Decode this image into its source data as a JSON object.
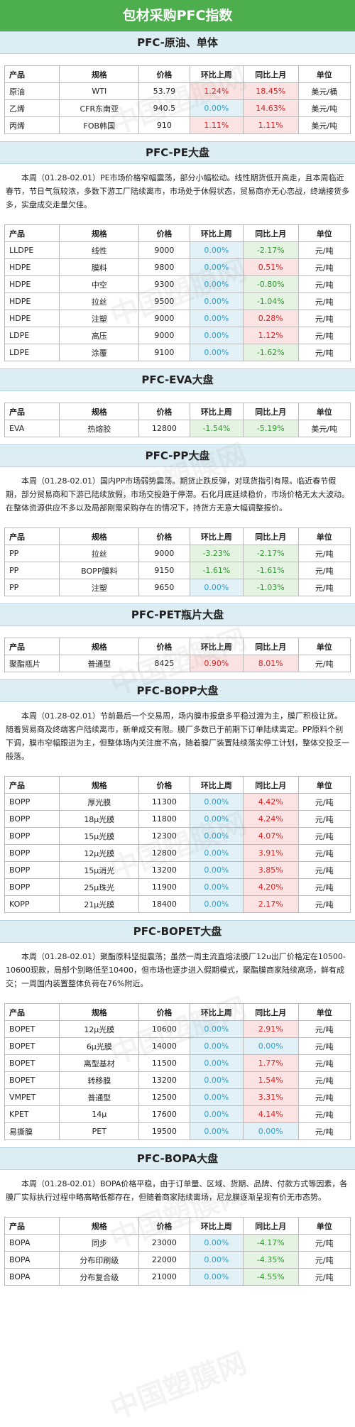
{
  "title": "包材采购PFC指数",
  "watermark": "中国塑膜网",
  "header": {
    "c0": "产品",
    "c1": "规格",
    "c2": "价格",
    "c3": "环比上周",
    "c4": "同比上月",
    "c5": "单位"
  },
  "sections": [
    {
      "title": "PFC-原油、单体",
      "note": "",
      "rows": [
        {
          "p": "原油",
          "s": "WTI",
          "v": "53.79",
          "w": "1.24%",
          "wt": "up",
          "m": "18.45%",
          "mt": "up",
          "u": "美元/桶"
        },
        {
          "p": "乙烯",
          "s": "CFR东南亚",
          "v": "940.5",
          "w": "0.00%",
          "wt": "fl",
          "m": "14.63%",
          "mt": "up",
          "u": "美元/吨"
        },
        {
          "p": "丙烯",
          "s": "FOB韩国",
          "v": "910",
          "w": "1.11%",
          "wt": "up",
          "m": "1.11%",
          "mt": "up",
          "u": "美元/吨"
        }
      ]
    },
    {
      "title": "PFC-PE大盘",
      "note": "本周（01.28-02.01）PE市场价格窄幅震荡，部分小幅松动。线性期货低开高走，且本周临近春节，节日气氛较浓，多数下游工厂陆续离市，市场处于休假状态，贸易商亦无心恋战，终端接货多多，实盘成交走量欠佳。",
      "rows": [
        {
          "p": "LLDPE",
          "s": "线性",
          "v": "9000",
          "w": "0.00%",
          "wt": "fl",
          "m": "-2.17%",
          "mt": "dn",
          "u": "元/吨"
        },
        {
          "p": "HDPE",
          "s": "膜料",
          "v": "9800",
          "w": "0.00%",
          "wt": "fl",
          "m": "0.51%",
          "mt": "up",
          "u": "元/吨"
        },
        {
          "p": "HDPE",
          "s": "中空",
          "v": "9300",
          "w": "0.00%",
          "wt": "fl",
          "m": "-0.80%",
          "mt": "dn",
          "u": "元/吨"
        },
        {
          "p": "HDPE",
          "s": "拉丝",
          "v": "9500",
          "w": "0.00%",
          "wt": "fl",
          "m": "-1.04%",
          "mt": "dn",
          "u": "元/吨"
        },
        {
          "p": "HDPE",
          "s": "注塑",
          "v": "9000",
          "w": "0.00%",
          "wt": "fl",
          "m": "0.28%",
          "mt": "up",
          "u": "元/吨"
        },
        {
          "p": "LDPE",
          "s": "高压",
          "v": "9000",
          "w": "0.00%",
          "wt": "fl",
          "m": "1.12%",
          "mt": "up",
          "u": "元/吨"
        },
        {
          "p": "LDPE",
          "s": "涂覆",
          "v": "9100",
          "w": "0.00%",
          "wt": "fl",
          "m": "-1.62%",
          "mt": "dn",
          "u": "元/吨"
        }
      ]
    },
    {
      "title": "PFC-EVA大盘",
      "note": "",
      "rows": [
        {
          "p": "EVA",
          "s": "热熔胶",
          "v": "12800",
          "w": "-1.54%",
          "wt": "dn",
          "m": "-5.19%",
          "mt": "dn",
          "u": "美元/吨"
        }
      ]
    },
    {
      "title": "PFC-PP大盘",
      "note": "本周（01.28-02.01）国内PP市场弱势震荡。期货止跌反弹，对现货指引有限。临近春节假期，部分贸易商和下游已陆续放假，市场交投趋于停滞。石化月底延续稳价，市场价格无太大波动。在整体资源供应不多以及局部刚需采购存在的情况下，持货方无意大幅调整报价。",
      "rows": [
        {
          "p": "PP",
          "s": "拉丝",
          "v": "9000",
          "w": "-3.23%",
          "wt": "dn",
          "m": "-2.17%",
          "mt": "dn",
          "u": "元/吨"
        },
        {
          "p": "PP",
          "s": "BOPP膜料",
          "v": "9150",
          "w": "-1.61%",
          "wt": "dn",
          "m": "-1.61%",
          "mt": "dn",
          "u": "元/吨"
        },
        {
          "p": "PP",
          "s": "注塑",
          "v": "9650",
          "w": "0.00%",
          "wt": "fl",
          "m": "-1.03%",
          "mt": "dn",
          "u": "元/吨"
        }
      ]
    },
    {
      "title": "PFC-PET瓶片大盘",
      "note": "",
      "rows": [
        {
          "p": "聚酯瓶片",
          "s": "普通型",
          "v": "8425",
          "w": "0.90%",
          "wt": "up",
          "m": "8.01%",
          "mt": "up",
          "u": "元/吨"
        }
      ]
    },
    {
      "title": "PFC-BOPP大盘",
      "note": "本周（01.28-02.01）节前最后一个交易周，场内膜市报盘多平稳过渡为主，膜厂积极让货。随着贸易商及终端客户陆续离市，新单成交有限。膜厂多数已于前期下订单陆续离定。PP原料个别下调，膜市窄幅跟进为主，但整体场内关注度不高，随着膜厂装置陆续落实停工计划，整体交投乏一般落。",
      "rows": [
        {
          "p": "BOPP",
          "s": "厚光膜",
          "v": "11300",
          "w": "0.00%",
          "wt": "fl",
          "m": "4.42%",
          "mt": "up",
          "u": "元/吨"
        },
        {
          "p": "BOPP",
          "s": "18μ光膜",
          "v": "11800",
          "w": "0.00%",
          "wt": "fl",
          "m": "4.24%",
          "mt": "up",
          "u": "元/吨"
        },
        {
          "p": "BOPP",
          "s": "15μ光膜",
          "v": "12300",
          "w": "0.00%",
          "wt": "fl",
          "m": "4.07%",
          "mt": "up",
          "u": "元/吨"
        },
        {
          "p": "BOPP",
          "s": "12μ光膜",
          "v": "12800",
          "w": "0.00%",
          "wt": "fl",
          "m": "3.91%",
          "mt": "up",
          "u": "元/吨"
        },
        {
          "p": "BOPP",
          "s": "15μ消光",
          "v": "13200",
          "w": "0.00%",
          "wt": "fl",
          "m": "3.85%",
          "mt": "up",
          "u": "元/吨"
        },
        {
          "p": "BOPP",
          "s": "25μ珠光",
          "v": "11900",
          "w": "0.00%",
          "wt": "fl",
          "m": "4.20%",
          "mt": "up",
          "u": "元/吨"
        },
        {
          "p": "KOPP",
          "s": "21μ光膜",
          "v": "18400",
          "w": "0.00%",
          "wt": "fl",
          "m": "2.17%",
          "mt": "up",
          "u": "元/吨"
        }
      ]
    },
    {
      "title": "PFC-BOPET大盘",
      "note": "本周（01.28-02.01）聚酯原料坚挺震荡；虽然一周主流直熔法膜厂12u出厂价格定在10500-10600现款，局部个别略低至10400，但市场也逐步进入假期模式，聚酯膜商家陆续离场，鲜有成交；一周国内装置整体负荷在76%附近。",
      "rows": [
        {
          "p": "BOPET",
          "s": "12μ光膜",
          "v": "10600",
          "w": "0.00%",
          "wt": "fl",
          "m": "2.91%",
          "mt": "up",
          "u": "元/吨"
        },
        {
          "p": "BOPET",
          "s": "6μ光膜",
          "v": "14000",
          "w": "0.00%",
          "wt": "fl",
          "m": "0.00%",
          "mt": "fl",
          "u": "元/吨"
        },
        {
          "p": "BOPET",
          "s": "离型基材",
          "v": "11500",
          "w": "0.00%",
          "wt": "fl",
          "m": "1.77%",
          "mt": "up",
          "u": "元/吨"
        },
        {
          "p": "BOPET",
          "s": "转移膜",
          "v": "13200",
          "w": "0.00%",
          "wt": "fl",
          "m": "1.54%",
          "mt": "up",
          "u": "元/吨"
        },
        {
          "p": "VMPET",
          "s": "普通型",
          "v": "12500",
          "w": "0.00%",
          "wt": "fl",
          "m": "3.31%",
          "mt": "up",
          "u": "元/吨"
        },
        {
          "p": "KPET",
          "s": "14μ",
          "v": "17600",
          "w": "0.00%",
          "wt": "fl",
          "m": "4.14%",
          "mt": "up",
          "u": "元/吨"
        },
        {
          "p": "易撕膜",
          "s": "PET",
          "v": "19500",
          "w": "0.00%",
          "wt": "fl",
          "m": "0.00%",
          "mt": "fl",
          "u": "元/吨"
        }
      ]
    },
    {
      "title": "PFC-BOPA大盘",
      "note": "本周（01.28-02.01）BOPA价格平稳，由于订单量、区域、货期、品牌、付款方式等因素，各膜厂实际执行过程中略高略低都存在，但随着商家陆续离场，尼龙膜逐渐呈现有价无市态势。",
      "rows": [
        {
          "p": "BOPA",
          "s": "同步",
          "v": "23000",
          "w": "0.00%",
          "wt": "fl",
          "m": "-4.17%",
          "mt": "dn",
          "u": "元/吨"
        },
        {
          "p": "BOPA",
          "s": "分布印刷级",
          "v": "22000",
          "w": "0.00%",
          "wt": "fl",
          "m": "-4.35%",
          "mt": "dn",
          "u": "元/吨"
        },
        {
          "p": "BOPA",
          "s": "分布复合级",
          "v": "21000",
          "w": "0.00%",
          "wt": "fl",
          "m": "-4.55%",
          "mt": "dn",
          "u": "元/吨"
        }
      ]
    }
  ]
}
